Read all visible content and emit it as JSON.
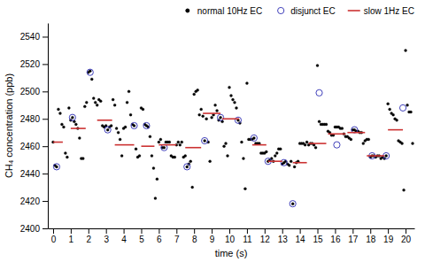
{
  "chart_data": {
    "type": "scatter",
    "xlabel": "time (s)",
    "ylabel": "CH₄ concentration (ppb)",
    "xlim": [
      -0.3,
      20.5
    ],
    "ylim": [
      2400,
      2550
    ],
    "xticks": [
      0,
      1,
      2,
      3,
      4,
      5,
      6,
      7,
      8,
      9,
      10,
      11,
      12,
      13,
      14,
      15,
      16,
      17,
      18,
      19,
      20
    ],
    "yticks": [
      2400,
      2420,
      2440,
      2460,
      2480,
      2500,
      2520,
      2540
    ],
    "legend": "upper right",
    "series": [
      {
        "name": "normal 10Hz EC",
        "type": "scatter",
        "marker": "circle",
        "color": "#000000",
        "x": [
          0.0,
          0.1,
          0.2,
          0.3,
          0.4,
          0.5,
          0.6,
          0.7,
          0.8,
          0.9,
          1.0,
          1.1,
          1.2,
          1.3,
          1.4,
          1.5,
          1.6,
          1.7,
          1.8,
          1.9,
          2.0,
          2.1,
          2.2,
          2.3,
          2.4,
          2.5,
          2.6,
          2.7,
          2.8,
          2.9,
          3.0,
          3.1,
          3.2,
          3.3,
          3.4,
          3.5,
          3.6,
          3.7,
          3.8,
          3.9,
          4.0,
          4.1,
          4.2,
          4.3,
          4.4,
          4.5,
          4.6,
          4.7,
          4.8,
          4.9,
          5.0,
          5.1,
          5.2,
          5.3,
          5.4,
          5.5,
          5.6,
          5.7,
          5.8,
          5.9,
          6.0,
          6.1,
          6.2,
          6.3,
          6.4,
          6.5,
          6.6,
          6.7,
          6.8,
          6.9,
          7.0,
          7.1,
          7.2,
          7.3,
          7.4,
          7.5,
          7.6,
          7.7,
          7.8,
          7.9,
          8.0,
          8.1,
          8.2,
          8.3,
          8.4,
          8.5,
          8.6,
          8.7,
          8.8,
          8.9,
          9.0,
          9.1,
          9.2,
          9.3,
          9.4,
          9.5,
          9.6,
          9.7,
          9.8,
          9.9,
          10.0,
          10.1,
          10.2,
          10.3,
          10.4,
          10.5,
          10.6,
          10.7,
          10.8,
          10.9,
          11.0,
          11.1,
          11.2,
          11.3,
          11.4,
          11.5,
          11.6,
          11.7,
          11.8,
          11.9,
          12.0,
          12.1,
          12.2,
          12.3,
          12.4,
          12.5,
          12.6,
          12.7,
          12.8,
          12.9,
          13.0,
          13.1,
          13.2,
          13.3,
          13.4,
          13.5,
          13.6,
          13.7,
          13.8,
          13.9,
          14.0,
          14.1,
          14.2,
          14.3,
          14.4,
          14.5,
          14.6,
          14.7,
          14.8,
          14.9,
          15.0,
          15.1,
          15.2,
          15.3,
          15.4,
          15.5,
          15.6,
          15.7,
          15.8,
          15.9,
          16.0,
          16.1,
          16.2,
          16.3,
          16.4,
          16.5,
          16.6,
          16.7,
          16.8,
          16.9,
          17.0,
          17.1,
          17.2,
          17.3,
          17.4,
          17.5,
          17.6,
          17.7,
          17.8,
          17.9,
          18.0,
          18.1,
          18.2,
          18.3,
          18.4,
          18.5,
          18.6,
          18.7,
          18.8,
          18.9,
          19.0,
          19.1,
          19.2,
          19.3,
          19.4,
          19.5,
          19.6,
          19.7,
          19.8,
          19.9,
          20.0,
          20.1,
          20.2,
          20.3,
          20.4
        ],
        "values": [
          2463,
          2446,
          2445,
          2487,
          2484,
          2476,
          2474,
          2455,
          2452,
          2488,
          2479,
          2481,
          2478,
          2476,
          2473,
          2466,
          2451,
          2451,
          2489,
          2492,
          2514,
          2515,
          2509,
          2495,
          2492,
          2490,
          2494,
          2493,
          2475,
          2474,
          2475,
          2472,
          2474,
          2475,
          2494,
          2490,
          2473,
          2470,
          2465,
          2453,
          2473,
          2474,
          2492,
          2500,
          2483,
          2476,
          2475,
          2458,
          2452,
          2453,
          2488,
          2487,
          2476,
          2475,
          2474,
          2467,
          2453,
          2444,
          2422,
          2436,
          2463,
          2465,
          2459,
          2459,
          2463,
          2463,
          2463,
          2453,
          2452,
          2452,
          2461,
          2463,
          2461,
          2463,
          2452,
          2453,
          2445,
          2447,
          2449,
          2430,
          2498,
          2500,
          2501,
          2483,
          2487,
          2482,
          2464,
          2480,
          2463,
          2449,
          2481,
          2483,
          2490,
          2486,
          2479,
          2481,
          2478,
          2460,
          2462,
          2453,
          2503,
          2497,
          2494,
          2492,
          2488,
          2479,
          2477,
          2463,
          2451,
          2429,
          2506,
          2465,
          2465,
          2465,
          2466,
          2462,
          2462,
          2462,
          2455,
          2455,
          2455,
          2456,
          2449,
          2450,
          2451,
          2449,
          2453,
          2455,
          2458,
          2458,
          2447,
          2448,
          2449,
          2447,
          2446,
          2449,
          2418,
          2445,
          2448,
          2449,
          2462,
          2462,
          2462,
          2461,
          2463,
          2461,
          2462,
          2462,
          2461,
          2459,
          2519,
          2478,
          2476,
          2476,
          2476,
          2476,
          2471,
          2470,
          2468,
          2468,
          2474,
          2474,
          2474,
          2473,
          2473,
          2469,
          2467,
          2467,
          2466,
          2465,
          2472,
          2472,
          2471,
          2471,
          2470,
          2470,
          2462,
          2464,
          2465,
          2465,
          2452,
          2453,
          2453,
          2452,
          2453,
          2453,
          2451,
          2452,
          2451,
          2453,
          2491,
          2487,
          2484,
          2483,
          2480,
          2479,
          2464,
          2463,
          2462,
          2428,
          2530,
          2490,
          2485,
          2485,
          2462
        ]
      },
      {
        "name": "disjunct EC",
        "type": "scatter",
        "marker": "open-circle",
        "color": "#4040bb",
        "x": [
          0.2,
          1.1,
          2.1,
          3.1,
          4.6,
          5.3,
          6.3,
          7.6,
          8.6,
          9.5,
          10.5,
          11.4,
          12.2,
          13.1,
          13.6,
          15.1,
          16.1,
          17.1,
          18.1,
          18.9,
          19.85
        ],
        "values": [
          2445,
          2481,
          2514,
          2472,
          2475,
          2475,
          2459,
          2445,
          2464,
          2481,
          2479,
          2466,
          2449,
          2448,
          2418,
          2499,
          2461,
          2472,
          2453,
          2453,
          2488
        ]
      },
      {
        "name": "slow 1Hz EC",
        "type": "segment",
        "line_style": "solid",
        "color": "#cc3333",
        "x_start": [
          0.0,
          1.0,
          2.5,
          3.5,
          5.0,
          6.0,
          7.5,
          8.5,
          9.6,
          11.3,
          12.2,
          13.6,
          14.5,
          15.6,
          16.7,
          17.8,
          19.0
        ],
        "x_end": [
          0.55,
          1.85,
          3.35,
          4.6,
          5.75,
          7.0,
          8.4,
          9.5,
          10.55,
          12.1,
          13.0,
          14.4,
          15.5,
          16.6,
          17.7,
          18.8,
          19.85
        ],
        "values": [
          2463,
          2473,
          2479,
          2461,
          2460,
          2461,
          2459,
          2484,
          2480,
          2461,
          2449,
          2448,
          2462,
          2469,
          2470,
          2453,
          2472
        ]
      }
    ]
  }
}
